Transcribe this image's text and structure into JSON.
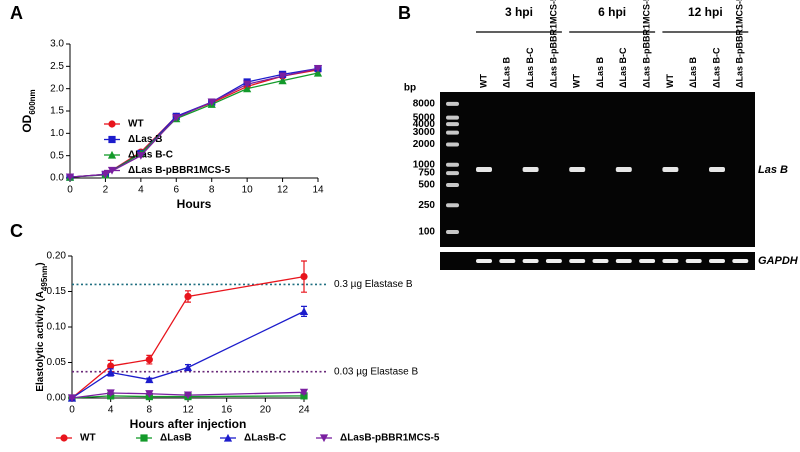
{
  "panels": [
    "A",
    "B",
    "C"
  ],
  "chart_data": [
    {
      "type": "line",
      "y_label": "OD",
      "y_label_sub": "600nm",
      "x_label": "Hours",
      "x": [
        0,
        2,
        4,
        6,
        8,
        10,
        12,
        14
      ],
      "xlim": [
        0,
        14
      ],
      "xticks": [
        0,
        2,
        4,
        6,
        8,
        10,
        12,
        14
      ],
      "ylim": [
        0,
        3
      ],
      "yticks": [
        {
          "value": 0,
          "label": "0.0"
        },
        {
          "value": 0.5,
          "label": "0.5"
        },
        {
          "value": 1,
          "label": "1.0"
        },
        {
          "value": 1.5,
          "label": "1.5"
        },
        {
          "value": 2,
          "label": "2.0"
        },
        {
          "value": 2.5,
          "label": "2.5"
        },
        {
          "value": 3,
          "label": "3.0"
        }
      ],
      "legend": "upper-left",
      "series": [
        {
          "name": "WT",
          "color": "#e8141c",
          "marker": "circle",
          "values": [
            0.02,
            0.08,
            0.58,
            1.38,
            1.68,
            2.05,
            2.28,
            2.42
          ]
        },
        {
          "name": "ΔLas B",
          "color": "#1c1ccc",
          "marker": "square",
          "values": [
            0.02,
            0.08,
            0.55,
            1.38,
            1.7,
            2.15,
            2.32,
            2.45
          ]
        },
        {
          "name": "ΔLas B-C",
          "color": "#139a2a",
          "marker": "triangle-up",
          "values": [
            0.02,
            0.07,
            0.55,
            1.33,
            1.65,
            2.0,
            2.18,
            2.35
          ]
        },
        {
          "name": "ΔLas B-pBBR1MCS-5",
          "color": "#7a1fa0",
          "marker": "triangle-down",
          "values": [
            0.02,
            0.08,
            0.5,
            1.35,
            1.7,
            2.1,
            2.28,
            2.45
          ]
        }
      ]
    },
    {
      "type": "gel",
      "groups": [
        "3 hpi",
        "6 hpi",
        "12 hpi"
      ],
      "lanes": [
        "WT",
        "ΔLas B",
        "ΔLas B-C",
        "ΔLas B-pBBR1MCS-5"
      ],
      "ladder_label": "bp",
      "ladder": [
        8000,
        5000,
        4000,
        3000,
        2000,
        1000,
        750,
        500,
        250,
        100
      ],
      "target_label": "Las B",
      "control_label": "GAPDH",
      "target_bands": [
        true,
        false,
        true,
        false,
        true,
        false,
        true,
        false,
        true,
        false,
        true,
        false
      ]
    },
    {
      "type": "line",
      "y_label": "Elastolytic activity (A",
      "y_label_sub": "495nm",
      "y_label_end": ")",
      "x_label": "Hours after injection",
      "x": [
        0,
        4,
        8,
        12,
        24
      ],
      "xlim": [
        0,
        24
      ],
      "xticks": [
        0,
        4,
        8,
        12,
        16,
        20,
        24
      ],
      "ylim": [
        0,
        0.2
      ],
      "yticks": [
        {
          "value": 0,
          "label": "0.00"
        },
        {
          "value": 0.05,
          "label": "0.05"
        },
        {
          "value": 0.1,
          "label": "0.10"
        },
        {
          "value": 0.15,
          "label": "0.15"
        },
        {
          "value": 0.2,
          "label": "0.20"
        }
      ],
      "legend": "bottom",
      "reference_lines": [
        {
          "value": 0.16,
          "label": "0.3 µg Elastase B",
          "color": "#1f6f80"
        },
        {
          "value": 0.037,
          "label": "0.03 µg Elastase B",
          "color": "#6a2a7a"
        }
      ],
      "series": [
        {
          "name": "WT",
          "color": "#e8141c",
          "marker": "circle",
          "values": [
            0,
            0.045,
            0.054,
            0.143,
            0.171
          ],
          "errors": [
            0.002,
            0.008,
            0.006,
            0.008,
            0.022
          ]
        },
        {
          "name": "ΔLasB",
          "color": "#139a2a",
          "marker": "square",
          "values": [
            0,
            0.003,
            0.002,
            0.002,
            0.003
          ],
          "errors": [
            0.001,
            0.001,
            0.001,
            0.001,
            0.001
          ]
        },
        {
          "name": "ΔLasB-C",
          "color": "#1c1ccc",
          "marker": "triangle-up",
          "values": [
            0,
            0.036,
            0.026,
            0.043,
            0.122
          ],
          "errors": [
            0.001,
            0.005,
            0.002,
            0.004,
            0.007
          ]
        },
        {
          "name": "ΔLasB-pBBR1MCS-5",
          "color": "#7a1fa0",
          "marker": "triangle-down",
          "values": [
            0,
            0.007,
            0.006,
            0.004,
            0.008
          ],
          "errors": [
            0.001,
            0.002,
            0.001,
            0.001,
            0.002
          ]
        }
      ]
    }
  ]
}
